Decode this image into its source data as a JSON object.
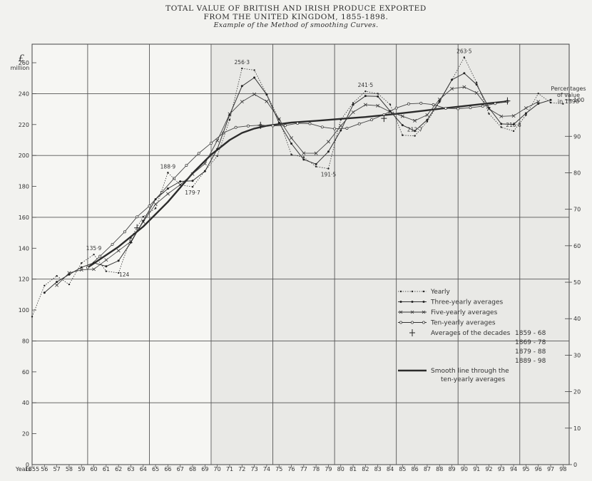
{
  "chart_data": {
    "type": "line",
    "title": "TOTAL VALUE OF BRITISH AND IRISH PRODUCE EXPORTED",
    "title_line2": "FROM THE UNITED KINGDOM, 1855-1898.",
    "subtitle": "Example of the Method of smoothing Curves.",
    "y_unit_symbol": "£",
    "y_unit_word": "million",
    "right_axis_title": [
      "Percentages",
      "of value",
      "in 1898"
    ],
    "x_axis_label": "Years",
    "x_ticks": [
      "1855",
      "56",
      "57",
      "58",
      "59",
      "60",
      "61",
      "62",
      "63",
      "64",
      "65",
      "66",
      "67",
      "68",
      "69",
      "70",
      "71",
      "72",
      "73",
      "74",
      "75",
      "76",
      "77",
      "78",
      "79",
      "80",
      "81",
      "82",
      "83",
      "84",
      "85",
      "86",
      "87",
      "88",
      "89",
      "90",
      "91",
      "92",
      "93",
      "94",
      "95",
      "96",
      "97",
      "98"
    ],
    "xlim": [
      1855,
      1898.5
    ],
    "ylim": [
      0,
      260
    ],
    "left_ticks": [
      0,
      20,
      40,
      60,
      80,
      100,
      120,
      140,
      160,
      180,
      200,
      220,
      240,
      260
    ],
    "right_ticks": [
      0,
      10,
      20,
      30,
      40,
      50,
      60,
      70,
      80,
      90,
      100
    ],
    "right_scale_max_value": 236,
    "grid": true,
    "grid_lines_x": [
      1859.5,
      1864.5,
      1869.5,
      1874.5,
      1879.5,
      1884.5,
      1889.5,
      1894.5
    ],
    "grid_lines_y": [
      40,
      80,
      120,
      160,
      200,
      240
    ],
    "series": [
      {
        "name": "Yearly",
        "style": "dotted-dots",
        "x": [
          1855,
          1856,
          1857,
          1858,
          1859,
          1860,
          1861,
          1862,
          1863,
          1864,
          1865,
          1866,
          1867,
          1868,
          1869,
          1870,
          1871,
          1872,
          1873,
          1874,
          1875,
          1876,
          1877,
          1878,
          1879,
          1880,
          1881,
          1882,
          1883,
          1884,
          1885,
          1886,
          1887,
          1888,
          1889,
          1890,
          1891,
          1892,
          1893,
          1894,
          1895,
          1896,
          1897,
          1898
        ],
        "y": [
          95.7,
          115.8,
          122.1,
          116.6,
          130.4,
          135.9,
          125.1,
          124.0,
          146.6,
          160.4,
          165.8,
          188.9,
          181.0,
          179.7,
          190.0,
          199.6,
          223.1,
          256.3,
          255.2,
          239.6,
          223.5,
          200.6,
          198.9,
          192.8,
          191.5,
          223.1,
          234.0,
          241.5,
          240.0,
          233.0,
          213.1,
          212.7,
          221.9,
          234.5,
          248.9,
          263.5,
          247.2,
          227.0,
          218.3,
          215.8,
          226.1,
          240.1,
          234.2,
          233.4
        ]
      },
      {
        "name": "Three-yearly averages",
        "style": "solid-dots",
        "x": [
          1856,
          1857,
          1858,
          1859,
          1860,
          1861,
          1862,
          1863,
          1864,
          1865,
          1866,
          1867,
          1868,
          1869,
          1870,
          1871,
          1872,
          1873,
          1874,
          1875,
          1876,
          1877,
          1878,
          1879,
          1880,
          1881,
          1882,
          1883,
          1884,
          1885,
          1886,
          1887,
          1888,
          1889,
          1890,
          1891,
          1892,
          1893,
          1894,
          1895,
          1896,
          1897
        ],
        "y": [
          111.2,
          118.2,
          123.0,
          127.6,
          130.5,
          128.3,
          131.9,
          143.7,
          157.6,
          171.7,
          178.6,
          183.2,
          183.6,
          189.8,
          204.2,
          226.3,
          244.9,
          250.4,
          239.4,
          221.2,
          207.7,
          197.4,
          194.4,
          202.5,
          216.2,
          232.9,
          238.5,
          238.2,
          228.7,
          219.6,
          215.9,
          223.0,
          235.1,
          249.0,
          253.2,
          245.9,
          230.8,
          220.4,
          220.1,
          227.3,
          233.5,
          235.9
        ]
      },
      {
        "name": "Five-yearly averages",
        "style": "solid-x",
        "x": [
          1857,
          1858,
          1859,
          1860,
          1861,
          1862,
          1863,
          1864,
          1865,
          1866,
          1867,
          1868,
          1869,
          1870,
          1871,
          1872,
          1873,
          1874,
          1875,
          1876,
          1877,
          1878,
          1879,
          1880,
          1881,
          1882,
          1883,
          1884,
          1885,
          1886,
          1887,
          1888,
          1889,
          1890,
          1891,
          1892,
          1893,
          1894,
          1895,
          1896
        ],
        "y": [
          116.1,
          124.0,
          126.0,
          126.4,
          132.4,
          138.4,
          144.4,
          157.1,
          168.5,
          175.2,
          181.1,
          188.0,
          194.7,
          209.7,
          226.8,
          234.8,
          239.6,
          235.0,
          223.6,
          211.3,
          201.5,
          201.4,
          208.9,
          219.2,
          228.0,
          232.8,
          232.2,
          228.2,
          225.4,
          222.5,
          226.2,
          236.3,
          243.2,
          244.3,
          240.5,
          230.1,
          225.3,
          225.6,
          230.7,
          234.8
        ]
      },
      {
        "name": "Ten-yearly averages",
        "style": "solid-circles",
        "x": [
          1859.5,
          1860.5,
          1861.5,
          1862.5,
          1863.5,
          1864.5,
          1865.5,
          1866.5,
          1867.5,
          1868.5,
          1869.5,
          1870.5,
          1871.5,
          1872.5,
          1873.5,
          1874.5,
          1875.5,
          1876.5,
          1877.5,
          1878.5,
          1879.5,
          1880.5,
          1881.5,
          1882.5,
          1883.5,
          1884.5,
          1885.5,
          1886.5,
          1887.5,
          1888.5,
          1889.5,
          1890.5,
          1891.5,
          1892.5,
          1893.5
        ],
        "y": [
          127.5,
          134.8,
          142.5,
          150.6,
          160.3,
          167.3,
          176.2,
          185.2,
          193.6,
          201.4,
          208.0,
          214.6,
          218.2,
          219.1,
          219.6,
          219.2,
          219.4,
          220.8,
          220.6,
          218.4,
          217.3,
          217.6,
          220.5,
          223.1,
          226.4,
          230.7,
          233.4,
          233.8,
          232.9,
          230.5,
          230.3,
          230.9,
          231.9,
          233.6,
          235.0
        ]
      },
      {
        "name": "Averages of the decades",
        "style": "cross-markers",
        "x": [
          1863.5,
          1873.5,
          1883.5,
          1893.5
        ],
        "y": [
          153.2,
          219.5,
          224.0,
          235.3
        ]
      },
      {
        "name": "Smooth line through the ten-yearly averages",
        "style": "thick-solid",
        "x": [
          1859.5,
          1862,
          1864,
          1866,
          1868,
          1869.5,
          1871,
          1872,
          1873,
          1874,
          1876,
          1878,
          1880,
          1882,
          1884,
          1886,
          1888,
          1890,
          1892,
          1893.5
        ],
        "y": [
          127.5,
          141.0,
          154.0,
          170.0,
          188.5,
          200.5,
          210.0,
          214.6,
          217.4,
          219.2,
          221.3,
          222.4,
          223.7,
          224.9,
          226.5,
          228.3,
          230.2,
          232.0,
          233.8,
          235.0
        ]
      }
    ],
    "annotations": [
      {
        "text": "135·9",
        "x": 1860,
        "y": 135.9
      },
      {
        "text": "124",
        "x": 1862,
        "y": 124.0
      },
      {
        "text": "188·9",
        "x": 1866,
        "y": 188.9
      },
      {
        "text": "179·7",
        "x": 1868,
        "y": 179.7
      },
      {
        "text": "256·3",
        "x": 1872,
        "y": 256.3
      },
      {
        "text": "191·5",
        "x": 1879,
        "y": 191.5
      },
      {
        "text": "241·5",
        "x": 1882,
        "y": 241.5
      },
      {
        "text": "212·7",
        "x": 1886,
        "y": 212.7
      },
      {
        "text": "263·5",
        "x": 1890,
        "y": 263.5
      },
      {
        "text": "215·8",
        "x": 1894,
        "y": 215.8
      }
    ],
    "legend": {
      "placement": "right-middle",
      "decades": [
        "1859 - 68",
        "1869 - 78",
        "1879 - 88",
        "1889 - 98"
      ]
    }
  }
}
